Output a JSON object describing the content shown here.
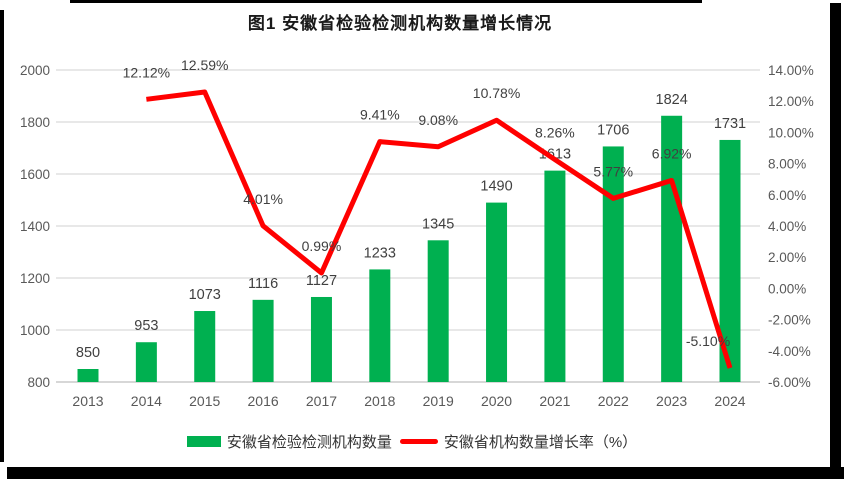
{
  "title": "图1 安徽省检验检测机构数量增长情况",
  "legend": {
    "bar_label": "安徽省检验检测机构数量",
    "line_label": "安徽省机构数量增长率（%）"
  },
  "colors": {
    "bar": "#00B050",
    "line": "#FF0000",
    "grid": "#D9D9D9",
    "axis_line": "#BFBFBF",
    "axis_text": "#595959",
    "data_label": "#404040",
    "frame": "#000000"
  },
  "chart_data": {
    "type": "combo",
    "title": "图1 安徽省检验检测机构数量增长情况",
    "categories": [
      "2013",
      "2014",
      "2015",
      "2016",
      "2017",
      "2018",
      "2019",
      "2020",
      "2021",
      "2022",
      "2023",
      "2024"
    ],
    "series": [
      {
        "name": "安徽省检验检测机构数量",
        "type": "bar",
        "axis": "left",
        "values": [
          850,
          953,
          1073,
          1116,
          1127,
          1233,
          1345,
          1490,
          1613,
          1706,
          1824,
          1731
        ]
      },
      {
        "name": "安徽省机构数量增长率（%）",
        "type": "line",
        "axis": "right",
        "values": [
          null,
          12.12,
          12.59,
          4.01,
          0.99,
          9.41,
          9.08,
          10.78,
          8.26,
          5.77,
          6.92,
          -5.1
        ],
        "point_labels": [
          "",
          "12.12%",
          "12.59%",
          "4.01%",
          "0.99%",
          "9.41%",
          "9.08%",
          "10.78%",
          "8.26%",
          "5.77%",
          "6.92%",
          "-5.10%"
        ]
      }
    ],
    "left_axis": {
      "min": 800,
      "max": 2000,
      "step": 200,
      "ticks": [
        "2000",
        "1800",
        "1600",
        "1400",
        "1200",
        "1000",
        "800"
      ]
    },
    "right_axis": {
      "min": -6,
      "max": 14,
      "step": 2,
      "ticks": [
        "14.00%",
        "12.00%",
        "10.00%",
        "8.00%",
        "6.00%",
        "4.00%",
        "2.00%",
        "0.00%",
        "-2.00%",
        "-4.00%",
        "-6.00%"
      ]
    },
    "grid": true,
    "legend_position": "bottom"
  }
}
